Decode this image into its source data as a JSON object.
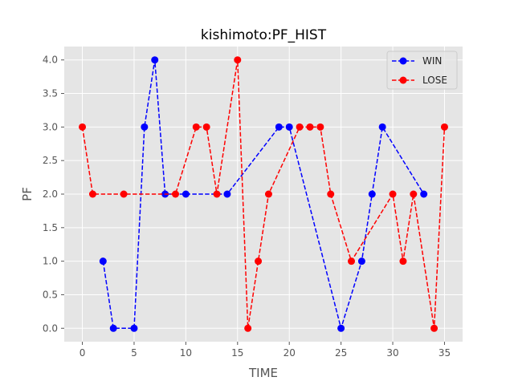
{
  "chart_data": {
    "type": "line",
    "title": "kishimoto:PF_HIST",
    "xlabel": "TIME",
    "ylabel": "PF",
    "xlim": [
      -1.75,
      36.75
    ],
    "ylim": [
      -0.2,
      4.2
    ],
    "xticks": [
      0,
      5,
      10,
      15,
      20,
      25,
      30,
      35
    ],
    "yticks": [
      0.0,
      0.5,
      1.0,
      1.5,
      2.0,
      2.5,
      3.0,
      3.5,
      4.0
    ],
    "xtick_labels": [
      "0",
      "5",
      "10",
      "15",
      "20",
      "25",
      "30",
      "35"
    ],
    "ytick_labels": [
      "0.0",
      "0.5",
      "1.0",
      "1.5",
      "2.0",
      "2.5",
      "3.0",
      "3.5",
      "4.0"
    ],
    "grid": true,
    "legend": "top-right",
    "series": [
      {
        "name": "WIN",
        "color": "#0000ff",
        "x": [
          2,
          3,
          5,
          6,
          7,
          8,
          10,
          14,
          19,
          20,
          25,
          27,
          28,
          29,
          33
        ],
        "y": [
          1,
          0,
          0,
          3,
          4,
          2,
          2,
          2,
          3,
          3,
          0,
          1,
          2,
          3,
          2
        ]
      },
      {
        "name": "LOSE",
        "color": "#ff0000",
        "x": [
          0,
          1,
          4,
          9,
          11,
          12,
          13,
          15,
          16,
          17,
          18,
          21,
          22,
          23,
          24,
          26,
          30,
          31,
          32,
          34,
          35
        ],
        "y": [
          3,
          2,
          2,
          2,
          3,
          3,
          2,
          4,
          0,
          1,
          2,
          3,
          3,
          3,
          2,
          1,
          2,
          1,
          2,
          0,
          3
        ]
      }
    ]
  }
}
